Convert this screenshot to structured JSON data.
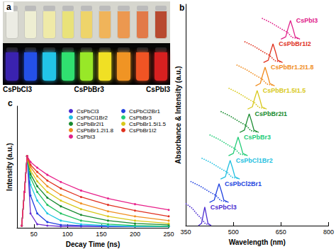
{
  "photo": {
    "label": "a",
    "daylight_colors": [
      "#ecece4",
      "#eeeed2",
      "#efeaa8",
      "#e9e27a",
      "#eed46a",
      "#f0b45a",
      "#ec9850",
      "#e27a48",
      "#b84a30"
    ],
    "uv_colors": [
      "#3a22b0",
      "#2450e8",
      "#22c4e8",
      "#30e070",
      "#98e828",
      "#f0e024",
      "#f09424",
      "#f05424",
      "#d82020"
    ],
    "labels": [
      "CsPbCl3",
      "CsPbBr3",
      "CsPbI3"
    ]
  },
  "chart_data": [
    {
      "type": "line",
      "title": "b",
      "x_label": "Wavelength (nm)",
      "y_label": "Absorbance & Intensity (a.u.)",
      "xlim": [
        350,
        800
      ],
      "xticks": [
        350,
        500,
        650,
        800
      ],
      "ylim": [
        0,
        9.5
      ],
      "tick_labels": "x",
      "grid": false,
      "data_labels": false,
      "series": [
        {
          "name": "CsPbCl3",
          "color": "#4b2bd0",
          "line_style": "solid",
          "x": [
            390,
            400,
            405,
            410,
            415,
            420,
            430
          ],
          "values": [
            0,
            0.1,
            0.45,
            0.8,
            0.45,
            0.1,
            0
          ]
        },
        {
          "name": "CsPbCl3",
          "color": "#4b2bd0",
          "line_style": "dotted",
          "x": [
            350,
            370,
            385,
            400,
            412,
            430
          ],
          "values": [
            0.95,
            0.75,
            0.5,
            0.3,
            0.08,
            0.02
          ]
        },
        {
          "name": "CsPbCl2Br1",
          "color": "#2244e0",
          "line_style": "solid",
          "x": [
            425,
            440,
            447,
            455,
            463,
            470,
            485
          ],
          "values": [
            1,
            1.1,
            1.45,
            1.8,
            1.45,
            1.1,
            1
          ]
        },
        {
          "name": "CsPbCl2Br1",
          "color": "#2244e0",
          "line_style": "dotted",
          "x": [
            365,
            395,
            425,
            445,
            460,
            480
          ],
          "values": [
            1.9,
            1.7,
            1.45,
            1.3,
            1.08,
            1.02
          ]
        },
        {
          "name": "CsPbCl1Br2",
          "color": "#1fbfe0",
          "line_style": "solid",
          "x": [
            460,
            475,
            482,
            490,
            498,
            505,
            520
          ],
          "values": [
            2,
            2.1,
            2.45,
            2.8,
            2.45,
            2.1,
            2
          ]
        },
        {
          "name": "CsPbCl1Br2",
          "color": "#1fbfe0",
          "line_style": "dotted",
          "x": [
            400,
            430,
            460,
            480,
            495,
            515
          ],
          "values": [
            2.9,
            2.7,
            2.45,
            2.3,
            2.08,
            2.02
          ]
        },
        {
          "name": "CsPbBr3",
          "color": "#22cc77",
          "line_style": "solid",
          "x": [
            485,
            500,
            507,
            515,
            523,
            530,
            545
          ],
          "values": [
            3,
            3.1,
            3.45,
            3.8,
            3.45,
            3.1,
            3
          ]
        },
        {
          "name": "CsPbBr3",
          "color": "#22cc77",
          "line_style": "dotted",
          "x": [
            425,
            455,
            485,
            505,
            520,
            540
          ],
          "values": [
            3.9,
            3.7,
            3.45,
            3.3,
            3.08,
            3.02
          ]
        },
        {
          "name": "CsPbBr2I1",
          "color": "#178a2e",
          "line_style": "solid",
          "x": [
            520,
            535,
            542,
            550,
            558,
            565,
            580
          ],
          "values": [
            4,
            4.1,
            4.45,
            4.8,
            4.45,
            4.1,
            4
          ]
        },
        {
          "name": "CsPbBr2I1",
          "color": "#178a2e",
          "line_style": "dotted",
          "x": [
            460,
            490,
            520,
            540,
            555,
            575
          ],
          "values": [
            4.9,
            4.7,
            4.45,
            4.3,
            4.08,
            4.02
          ]
        },
        {
          "name": "CsPbBr1.5I1.5",
          "color": "#d8c81a",
          "line_style": "solid",
          "x": [
            545,
            560,
            567,
            575,
            583,
            590,
            605
          ],
          "values": [
            5,
            5.1,
            5.45,
            5.8,
            5.45,
            5.1,
            5
          ]
        },
        {
          "name": "CsPbBr1.5I1.5",
          "color": "#d8c81a",
          "line_style": "dotted",
          "x": [
            485,
            515,
            545,
            565,
            580,
            600
          ],
          "values": [
            5.9,
            5.7,
            5.45,
            5.3,
            5.08,
            5.02
          ]
        },
        {
          "name": "CsPbBr1.2I1.8",
          "color": "#f08c1e",
          "line_style": "solid",
          "x": [
            570,
            585,
            592,
            600,
            608,
            615,
            630
          ],
          "values": [
            6,
            6.1,
            6.45,
            6.8,
            6.45,
            6.1,
            6
          ]
        },
        {
          "name": "CsPbBr1.2I1.8",
          "color": "#f08c1e",
          "line_style": "dotted",
          "x": [
            510,
            540,
            570,
            590,
            605,
            625
          ],
          "values": [
            6.9,
            6.7,
            6.45,
            6.3,
            6.08,
            6.02
          ]
        },
        {
          "name": "CsPbBr1I2",
          "color": "#e0321e",
          "line_style": "solid",
          "x": [
            595,
            610,
            617,
            625,
            633,
            640,
            655
          ],
          "values": [
            7,
            7.1,
            7.45,
            7.8,
            7.45,
            7.1,
            7
          ]
        },
        {
          "name": "CsPbBr1I2",
          "color": "#e0321e",
          "line_style": "dotted",
          "x": [
            535,
            565,
            595,
            615,
            630,
            650
          ],
          "values": [
            7.9,
            7.7,
            7.45,
            7.3,
            7.08,
            7.02
          ]
        },
        {
          "name": "CsPbI3",
          "color": "#e0208a",
          "line_style": "solid",
          "x": [
            650,
            665,
            672,
            680,
            688,
            695,
            710
          ],
          "values": [
            8,
            8.1,
            8.45,
            8.8,
            8.45,
            8.1,
            8
          ]
        },
        {
          "name": "CsPbI3",
          "color": "#e0208a",
          "line_style": "dotted",
          "x": [
            590,
            620,
            650,
            670,
            685,
            705
          ],
          "values": [
            8.9,
            8.7,
            8.45,
            8.3,
            8.08,
            8.02
          ]
        }
      ]
    },
    {
      "type": "line",
      "title": "c",
      "x_label": "Decay Time (ns)",
      "y_label": "Intensity (a.u.)",
      "xlim": [
        25,
        250
      ],
      "xticks": [
        50,
        100,
        150,
        200,
        250
      ],
      "ylim": [
        0,
        1.7
      ],
      "tick_labels": "x",
      "grid": false,
      "legend": "upper right",
      "marker": "circle",
      "line_style": "solid",
      "x": [
        32,
        36,
        40,
        45,
        55,
        70,
        90,
        120,
        160,
        200,
        250
      ],
      "series": [
        {
          "name": "CsPbCl3",
          "color": "#6a2fd0",
          "values": [
            0.03,
            0.5,
            1.0,
            0.2,
            0.05,
            0.03,
            0.02,
            0.02,
            0.02,
            0.02,
            0.02
          ]
        },
        {
          "name": "CsPbCl2Br1",
          "color": "#2040e0",
          "values": [
            0.03,
            0.5,
            1.0,
            0.45,
            0.2,
            0.08,
            0.04,
            0.03,
            0.02,
            0.02,
            0.02
          ]
        },
        {
          "name": "CsPbCl1Br2",
          "color": "#20c8e0",
          "values": [
            0.03,
            0.5,
            1.0,
            0.6,
            0.38,
            0.2,
            0.1,
            0.05,
            0.03,
            0.02,
            0.02
          ]
        },
        {
          "name": "CsPbBr3",
          "color": "#20c060",
          "values": [
            0.03,
            0.5,
            1.0,
            0.7,
            0.5,
            0.32,
            0.2,
            0.1,
            0.05,
            0.03,
            0.02
          ]
        },
        {
          "name": "CsPbBr2I1",
          "color": "#188a30",
          "values": [
            0.03,
            0.5,
            1.0,
            0.75,
            0.58,
            0.42,
            0.3,
            0.18,
            0.1,
            0.06,
            0.04
          ]
        },
        {
          "name": "CsPbBr1.5I1.5",
          "color": "#d8c818",
          "values": [
            0.03,
            0.5,
            1.0,
            0.8,
            0.65,
            0.5,
            0.38,
            0.26,
            0.16,
            0.1,
            0.06
          ]
        },
        {
          "name": "CsPbBr1.2I1.8",
          "color": "#f09020",
          "values": [
            0.03,
            0.5,
            1.0,
            0.85,
            0.72,
            0.58,
            0.46,
            0.34,
            0.23,
            0.16,
            0.1
          ]
        },
        {
          "name": "CsPbBr1I2",
          "color": "#e03020",
          "values": [
            0.03,
            0.5,
            1.0,
            0.88,
            0.78,
            0.66,
            0.55,
            0.43,
            0.32,
            0.24,
            0.16
          ]
        },
        {
          "name": "CsPbI3",
          "color": "#e8208a",
          "values": [
            0.03,
            0.5,
            1.0,
            0.92,
            0.84,
            0.74,
            0.64,
            0.52,
            0.41,
            0.33,
            0.25
          ]
        }
      ]
    }
  ]
}
